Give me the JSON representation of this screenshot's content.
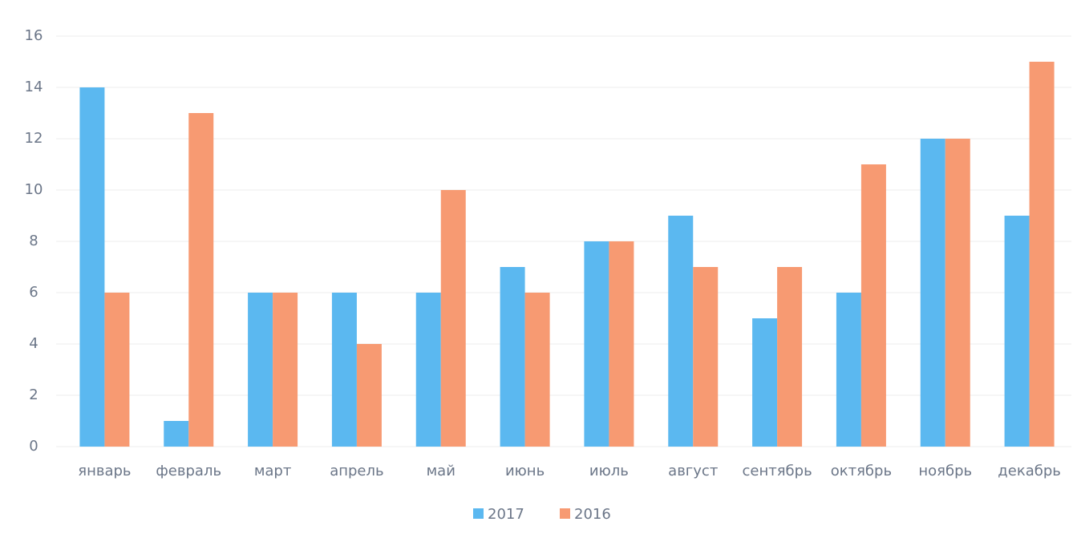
{
  "chart_data": {
    "type": "bar",
    "categories": [
      "январь",
      "февраль",
      "март",
      "апрель",
      "май",
      "июнь",
      "июль",
      "август",
      "сентябрь",
      "октябрь",
      "ноябрь",
      "декабрь"
    ],
    "series": [
      {
        "name": "2017",
        "color": "#5bb8f0",
        "values": [
          14,
          1,
          6,
          6,
          6,
          7,
          8,
          9,
          5,
          6,
          12,
          9
        ]
      },
      {
        "name": "2016",
        "color": "#f79a72",
        "values": [
          6,
          13,
          6,
          4,
          10,
          6,
          8,
          7,
          7,
          11,
          12,
          15
        ]
      }
    ],
    "ylim": [
      0,
      16
    ],
    "yticks": [
      0,
      2,
      4,
      6,
      8,
      10,
      12,
      14,
      16
    ],
    "grid": true,
    "legend": "bottom"
  }
}
